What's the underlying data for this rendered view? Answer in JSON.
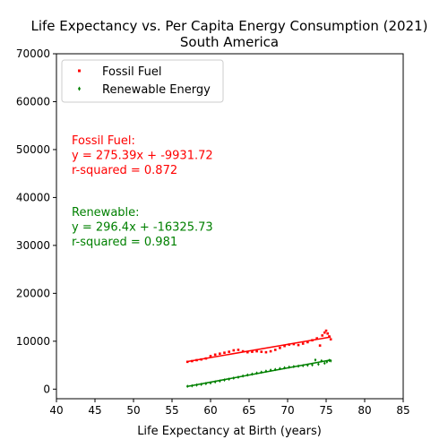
{
  "chart_data": {
    "type": "scatter",
    "title": "Life Expectancy vs. Per Capita Energy Consumption (2021)",
    "subtitle": "South America",
    "xlabel": "Life Expectancy at Birth (years)",
    "ylabel": "",
    "xlim": [
      40,
      85
    ],
    "ylim": [
      -2000,
      70000
    ],
    "xticks": [
      40,
      45,
      50,
      55,
      60,
      65,
      70,
      75,
      80,
      85
    ],
    "yticks": [
      0,
      10000,
      20000,
      30000,
      40000,
      50000,
      60000,
      70000
    ],
    "grid": false,
    "legend_position": "upper left",
    "series": [
      {
        "name": "Fossil Fuel",
        "color": "#ff0000",
        "marker": "s",
        "points": [
          [
            57.0,
            5700
          ],
          [
            57.6,
            5850
          ],
          [
            58.2,
            6050
          ],
          [
            58.8,
            6200
          ],
          [
            59.4,
            6400
          ],
          [
            60.0,
            6900
          ],
          [
            60.6,
            7200
          ],
          [
            61.2,
            7400
          ],
          [
            61.8,
            7600
          ],
          [
            62.4,
            7800
          ],
          [
            63.0,
            8100
          ],
          [
            63.6,
            8200
          ],
          [
            64.2,
            7900
          ],
          [
            64.8,
            7700
          ],
          [
            65.4,
            7800
          ],
          [
            66.0,
            7900
          ],
          [
            66.6,
            7800
          ],
          [
            67.2,
            7700
          ],
          [
            67.8,
            7900
          ],
          [
            68.4,
            8200
          ],
          [
            69.0,
            8600
          ],
          [
            69.6,
            9000
          ],
          [
            70.2,
            9300
          ],
          [
            70.8,
            9400
          ],
          [
            71.4,
            9200
          ],
          [
            72.0,
            9500
          ],
          [
            72.6,
            9800
          ],
          [
            73.2,
            10200
          ],
          [
            73.8,
            10600
          ],
          [
            74.2,
            9100
          ],
          [
            74.5,
            11200
          ],
          [
            74.8,
            11800
          ],
          [
            75.0,
            12200
          ],
          [
            75.2,
            11600
          ],
          [
            75.4,
            11000
          ],
          [
            75.6,
            10400
          ]
        ],
        "fit": {
          "slope": 275.39,
          "intercept": -9931.72,
          "x_range": [
            57.0,
            75.6
          ]
        }
      },
      {
        "name": "Renewable Energy",
        "color": "#008000",
        "marker": "d",
        "points": [
          [
            57.0,
            600
          ],
          [
            57.6,
            700
          ],
          [
            58.2,
            850
          ],
          [
            58.8,
            1000
          ],
          [
            59.4,
            1150
          ],
          [
            60.0,
            1300
          ],
          [
            60.6,
            1500
          ],
          [
            61.2,
            1700
          ],
          [
            61.8,
            1900
          ],
          [
            62.4,
            2100
          ],
          [
            63.0,
            2300
          ],
          [
            63.6,
            2500
          ],
          [
            64.2,
            2750
          ],
          [
            64.8,
            2950
          ],
          [
            65.4,
            3150
          ],
          [
            66.0,
            3350
          ],
          [
            66.6,
            3550
          ],
          [
            67.2,
            3750
          ],
          [
            67.8,
            3950
          ],
          [
            68.4,
            4100
          ],
          [
            69.0,
            4300
          ],
          [
            69.6,
            4450
          ],
          [
            70.2,
            4600
          ],
          [
            70.8,
            4700
          ],
          [
            71.4,
            4800
          ],
          [
            72.0,
            4900
          ],
          [
            72.6,
            5000
          ],
          [
            73.2,
            5050
          ],
          [
            73.6,
            6100
          ],
          [
            74.0,
            5200
          ],
          [
            74.4,
            5900
          ],
          [
            74.8,
            5400
          ],
          [
            75.1,
            5700
          ],
          [
            75.4,
            6000
          ],
          [
            75.6,
            5900
          ]
        ],
        "fit": {
          "slope": 296.4,
          "intercept": -16325.73,
          "x_range": [
            57.0,
            75.6
          ]
        }
      }
    ],
    "annotations": [
      {
        "lines": [
          "Fossil Fuel:",
          "y = 275.39x + -9931.72",
          "r-squared = 0.872"
        ],
        "color": "#ff0000"
      },
      {
        "lines": [
          "Renewable:",
          "y = 296.4x + -16325.73",
          "r-squared = 0.981"
        ],
        "color": "#008000"
      }
    ]
  }
}
